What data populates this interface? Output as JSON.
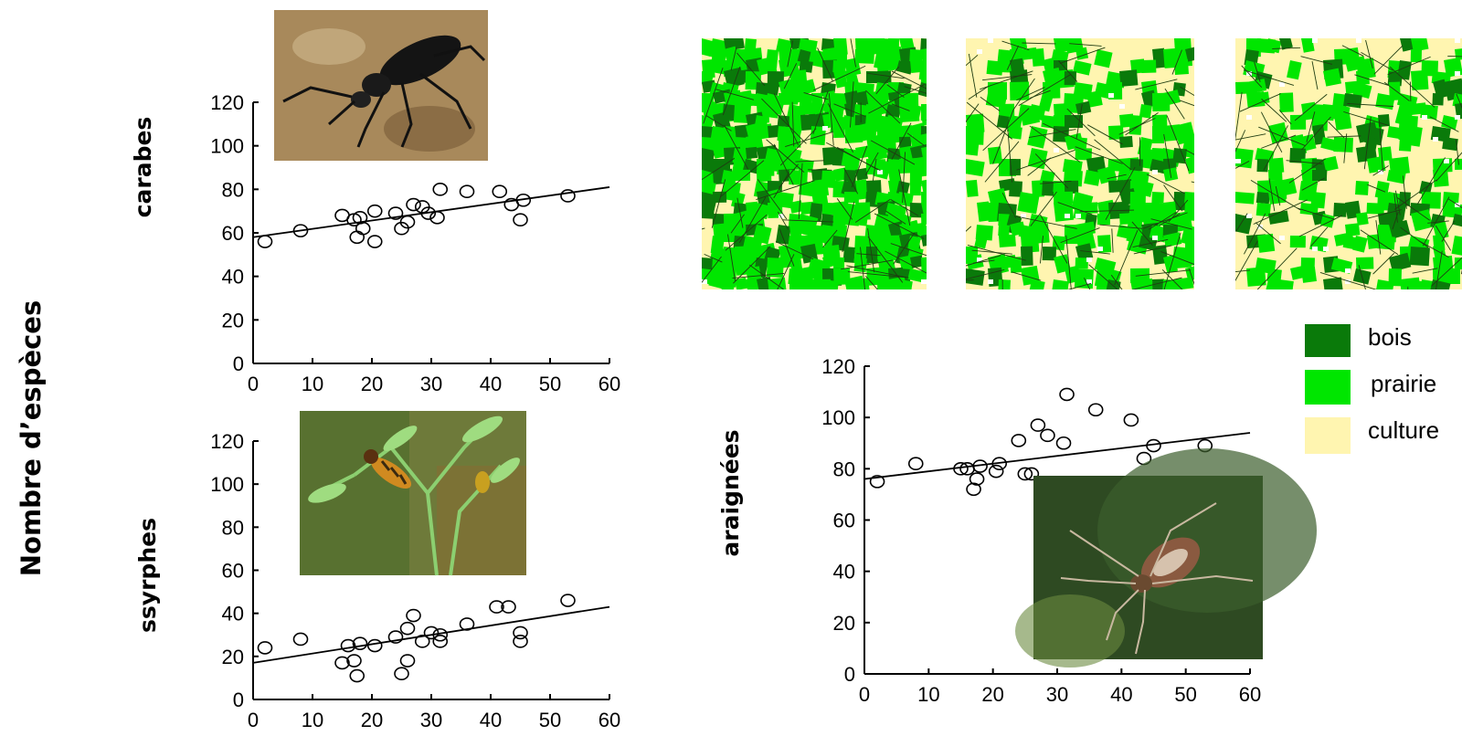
{
  "y_title": "Nombre d’espèces",
  "legend": {
    "items": [
      {
        "label": "bois",
        "color": "#0a7a0a"
      },
      {
        "label": "prairie",
        "color": "#00e600"
      },
      {
        "label": "culture",
        "color": "#fff5b0"
      }
    ]
  },
  "chart_data": [
    {
      "type": "scatter",
      "title": "",
      "ylabel": "carabes",
      "xlabel": "",
      "xlim": [
        0,
        60
      ],
      "ylim": [
        0,
        120
      ],
      "xticks": [
        0,
        10,
        20,
        30,
        40,
        50,
        60
      ],
      "yticks": [
        0,
        20,
        40,
        60,
        80,
        100,
        120
      ],
      "points": [
        [
          2,
          56
        ],
        [
          8,
          61
        ],
        [
          15,
          68
        ],
        [
          17,
          66
        ],
        [
          17.5,
          58
        ],
        [
          18,
          67
        ],
        [
          18.5,
          62
        ],
        [
          20.5,
          56
        ],
        [
          20.5,
          70
        ],
        [
          24,
          69
        ],
        [
          25,
          62
        ],
        [
          26,
          65
        ],
        [
          27,
          73
        ],
        [
          28.5,
          72
        ],
        [
          29.5,
          69
        ],
        [
          31,
          67
        ],
        [
          31.5,
          80
        ],
        [
          36,
          79
        ],
        [
          41.5,
          79
        ],
        [
          43.5,
          73
        ],
        [
          45,
          66
        ],
        [
          45.5,
          75
        ],
        [
          53,
          77
        ]
      ],
      "trendline": [
        [
          0,
          58
        ],
        [
          60,
          81
        ]
      ],
      "photo": "ground-beetle"
    },
    {
      "type": "scatter",
      "title": "",
      "ylabel": "ssyrphes",
      "xlabel": "",
      "xlim": [
        0,
        60
      ],
      "ylim": [
        0,
        120
      ],
      "xticks": [
        0,
        10,
        20,
        30,
        40,
        50,
        60
      ],
      "yticks": [
        0,
        20,
        40,
        60,
        80,
        100,
        120
      ],
      "points": [
        [
          2,
          24
        ],
        [
          8,
          28
        ],
        [
          15,
          17
        ],
        [
          16,
          25
        ],
        [
          17,
          18
        ],
        [
          17.5,
          11
        ],
        [
          18,
          26
        ],
        [
          20.5,
          25
        ],
        [
          24,
          29
        ],
        [
          25,
          12
        ],
        [
          26,
          18
        ],
        [
          26,
          33
        ],
        [
          27,
          39
        ],
        [
          28.5,
          27
        ],
        [
          30,
          31
        ],
        [
          31.5,
          27
        ],
        [
          31.5,
          30
        ],
        [
          36,
          35
        ],
        [
          41,
          43
        ],
        [
          43,
          43
        ],
        [
          45,
          31
        ],
        [
          45,
          27
        ],
        [
          53,
          46
        ]
      ],
      "trendline": [
        [
          0,
          17
        ],
        [
          60,
          43
        ]
      ],
      "photo": "hoverfly"
    },
    {
      "type": "scatter",
      "title": "",
      "ylabel": "araignées",
      "xlabel": "",
      "xlim": [
        0,
        60
      ],
      "ylim": [
        0,
        120
      ],
      "xticks": [
        0,
        10,
        20,
        30,
        40,
        50,
        60
      ],
      "yticks": [
        0,
        20,
        40,
        60,
        80,
        100,
        120
      ],
      "points": [
        [
          2,
          75
        ],
        [
          8,
          82
        ],
        [
          15,
          80
        ],
        [
          16,
          80
        ],
        [
          17,
          72
        ],
        [
          17.5,
          76
        ],
        [
          18,
          81
        ],
        [
          20.5,
          79
        ],
        [
          21,
          82
        ],
        [
          24,
          91
        ],
        [
          25,
          78
        ],
        [
          26,
          78
        ],
        [
          27,
          97
        ],
        [
          28.5,
          93
        ],
        [
          31,
          90
        ],
        [
          31.5,
          109
        ],
        [
          36,
          103
        ],
        [
          41.5,
          99
        ],
        [
          43.5,
          84
        ],
        [
          45,
          89
        ],
        [
          53,
          89
        ]
      ],
      "trendline": [
        [
          0,
          76
        ],
        [
          60,
          94
        ]
      ],
      "photo": "spider"
    }
  ]
}
